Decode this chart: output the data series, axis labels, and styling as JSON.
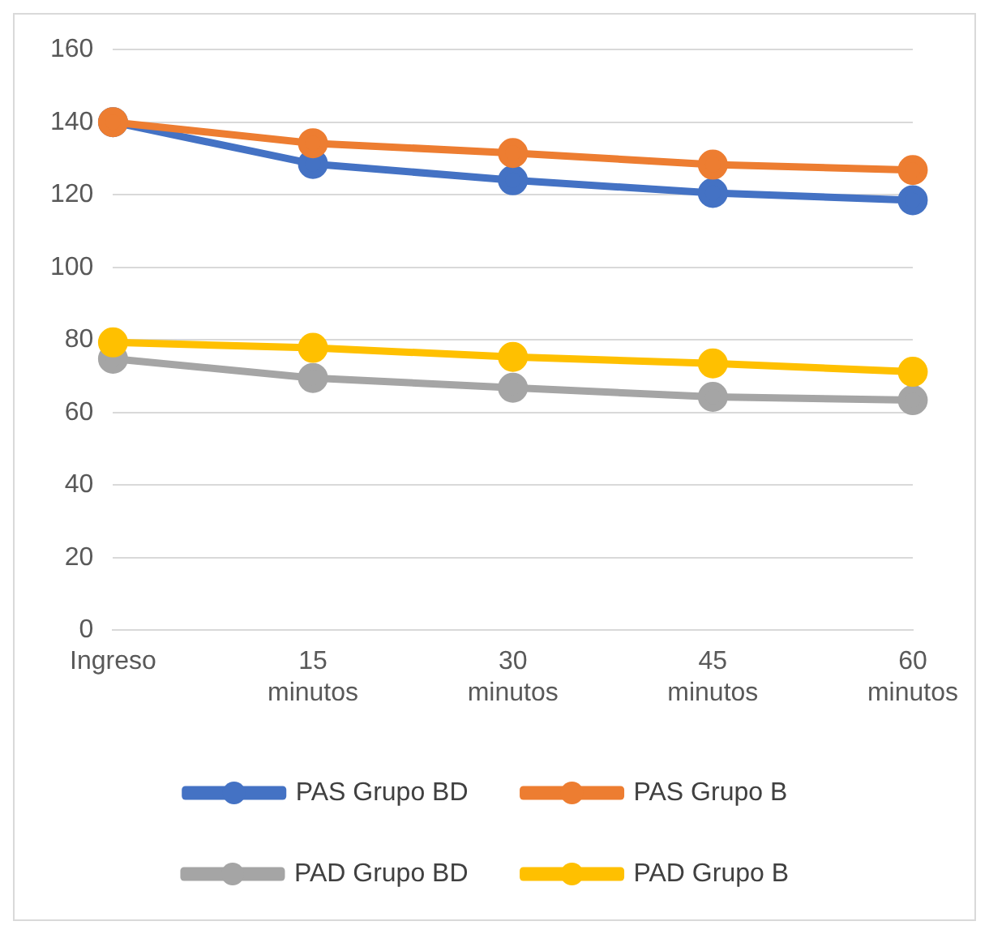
{
  "chart_data": {
    "type": "line",
    "categories": [
      "Ingreso",
      "15 minutos",
      "30 minutos",
      "45 minutos",
      "60 minutos"
    ],
    "series": [
      {
        "name": "PAS Grupo BD",
        "color": "#4472c4",
        "values": [
          140,
          128.5,
          124,
          120.5,
          118.5
        ]
      },
      {
        "name": "PAS Grupo B",
        "color": "#ed7d31",
        "values": [
          140,
          134.2,
          131.5,
          128.3,
          126.8
        ]
      },
      {
        "name": "PAD Grupo BD",
        "color": "#a5a5a5",
        "values": [
          74.8,
          69.5,
          66.8,
          64.3,
          63.4
        ]
      },
      {
        "name": "PAD Grupo B",
        "color": "#ffc000",
        "values": [
          79.3,
          77.8,
          75.3,
          73.5,
          71.2
        ]
      }
    ],
    "ylim": [
      0,
      160
    ],
    "yticks": [
      0,
      20,
      40,
      60,
      80,
      100,
      120,
      140,
      160
    ],
    "grid": "y",
    "legend": "bottom",
    "marker": "circle",
    "line_style": "solid"
  }
}
